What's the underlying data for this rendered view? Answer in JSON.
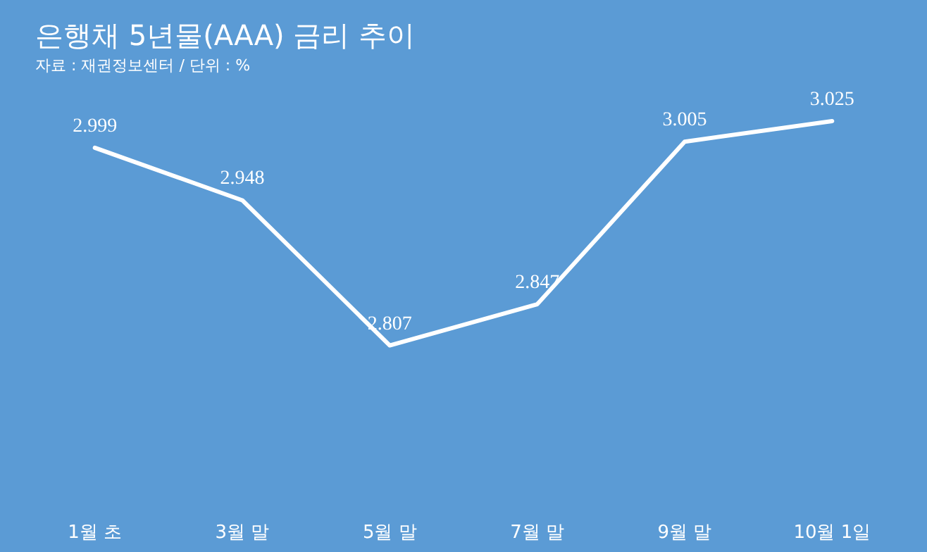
{
  "chart_data": {
    "type": "line",
    "title": "은행채 5년물(AAA) 금리 추이",
    "subtitle": "자료 : 재권정보센터 / 단위 : %",
    "categories": [
      "1월 초",
      "3월 말",
      "5월 말",
      "7월 말",
      "9월 말",
      "10월 1일"
    ],
    "series": [
      {
        "color": "#ffffff",
        "values": [
          2.999,
          2.948,
          2.807,
          2.847,
          3.005,
          3.025
        ]
      }
    ],
    "data_labels": true,
    "marker": "none",
    "line_style": "solid"
  }
}
